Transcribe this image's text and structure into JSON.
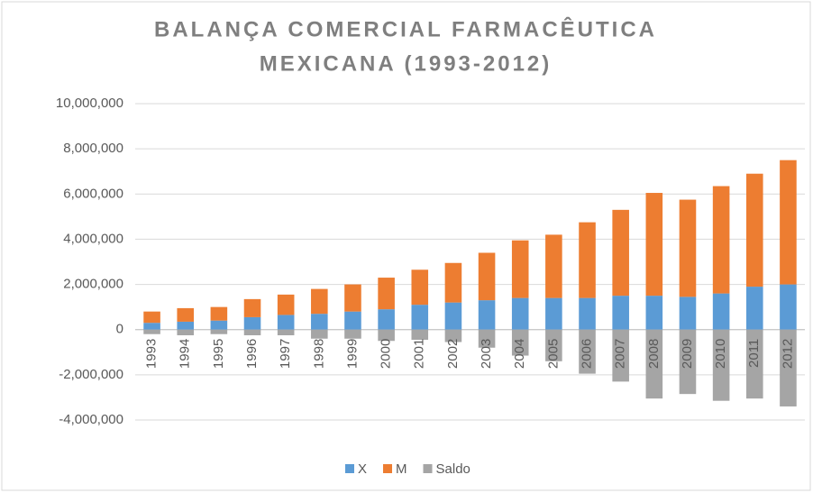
{
  "chart_data": {
    "type": "bar",
    "stacked": true,
    "title": "BALANÇA COMERCIAL FARMACÊUTICA MEXICANA (1993-2012)",
    "categories": [
      "1993",
      "1994",
      "1995",
      "1996",
      "1997",
      "1998",
      "1999",
      "2000",
      "2001",
      "2002",
      "2003",
      "2004",
      "2005",
      "2006",
      "2007",
      "2008",
      "2009",
      "2010",
      "2011",
      "2012"
    ],
    "series": [
      {
        "name": "X",
        "color": "#5b9bd5",
        "values": [
          300000,
          350000,
          400000,
          550000,
          650000,
          700000,
          800000,
          900000,
          1100000,
          1200000,
          1300000,
          1400000,
          1400000,
          1400000,
          1500000,
          1500000,
          1450000,
          1600000,
          1900000,
          2000000
        ]
      },
      {
        "name": "M",
        "color": "#ed7d31",
        "values": [
          500000,
          600000,
          600000,
          800000,
          900000,
          1100000,
          1200000,
          1400000,
          1550000,
          1750000,
          2100000,
          2550000,
          2800000,
          3350000,
          3800000,
          4550000,
          4300000,
          4750000,
          5000000,
          5500000
        ]
      },
      {
        "name": "Saldo",
        "color": "#a5a5a5",
        "values": [
          -200000,
          -250000,
          -200000,
          -250000,
          -250000,
          -400000,
          -400000,
          -500000,
          -450000,
          -550000,
          -800000,
          -1150000,
          -1400000,
          -1950000,
          -2300000,
          -3050000,
          -2850000,
          -3150000,
          -3050000,
          -3400000
        ]
      }
    ],
    "ylim": [
      -4000000,
      10000000
    ],
    "yticks": [
      {
        "value": -4000000,
        "label": "-4,000,000"
      },
      {
        "value": -2000000,
        "label": "-2,000,000"
      },
      0,
      {
        "value": 2000000,
        "label": "2,000,000"
      },
      {
        "value": 4000000,
        "label": "4,000,000"
      },
      {
        "value": 6000000,
        "label": "6,000,000"
      },
      {
        "value": 8000000,
        "label": "8,000,000"
      },
      {
        "value": 10000000,
        "label": "10,000,000"
      }
    ],
    "grid": true,
    "legend": "bottom"
  }
}
